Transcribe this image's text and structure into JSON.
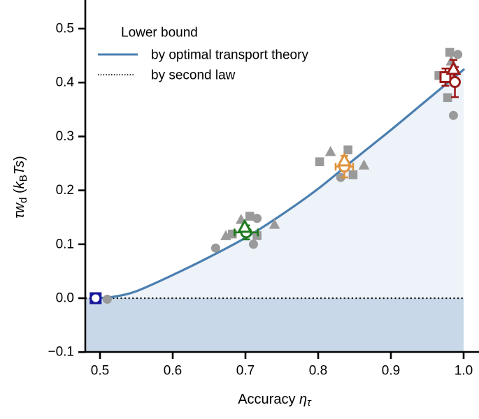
{
  "chart_data": {
    "type": "line+scatter",
    "title": "",
    "xlabel": {
      "prefix": "Accuracy ",
      "symbol": "η",
      "subscript": "τ"
    },
    "ylabel_parts": [
      {
        "t": "τ",
        "i": 1
      },
      {
        "t": "w",
        "i": 1
      },
      {
        "t": "d",
        "sub": 1
      },
      {
        "t": " (",
        "i": 0
      },
      {
        "t": "k",
        "i": 1
      },
      {
        "t": "B",
        "sub": 1
      },
      {
        "t": "T",
        "i": 1
      },
      {
        "t": "s",
        "i": 1
      },
      {
        "t": ")",
        "i": 0
      }
    ],
    "xlim": [
      0.48,
      1.0
    ],
    "ylim": [
      -0.1,
      0.553
    ],
    "x_ticks": {
      "labels": [
        "0.5",
        "0.6",
        "0.7",
        "0.8",
        "0.9",
        "1.0"
      ],
      "values": [
        0.5,
        0.6,
        0.7,
        0.8,
        0.9,
        1.0
      ]
    },
    "y_ticks": {
      "labels": [
        "0.5",
        "0.4",
        "0.3",
        "0.2",
        "0.1",
        "0.0",
        "−0.1"
      ],
      "values": [
        0.5,
        0.4,
        0.3,
        0.2,
        0.1,
        0.0,
        -0.1
      ]
    },
    "legend": {
      "title": "Lower bound",
      "items": [
        {
          "label": "by optimal transport theory",
          "style": "solid",
          "color": "#4a7fb0"
        },
        {
          "label": "by second law",
          "style": "dotted",
          "color": "#1a1a1a"
        }
      ]
    },
    "curve_optimal_transport": {
      "color": "#4a7fb0",
      "points": [
        [
          0.494,
          0.0
        ],
        [
          0.52,
          0.003
        ],
        [
          0.55,
          0.013
        ],
        [
          0.6,
          0.043
        ],
        [
          0.65,
          0.076
        ],
        [
          0.7,
          0.112
        ],
        [
          0.75,
          0.155
        ],
        [
          0.8,
          0.203
        ],
        [
          0.85,
          0.258
        ],
        [
          0.9,
          0.312
        ],
        [
          0.95,
          0.368
        ],
        [
          1.0,
          0.424
        ]
      ]
    },
    "second_law_line": {
      "y": 0.0,
      "color": "#1a1a1a",
      "style": "dotted"
    },
    "fills": {
      "between_curve_and_zero": "#eef2f9",
      "below_zero": "#c9d8e8"
    },
    "gray_points": {
      "color": "#9a9a9a",
      "points": [
        {
          "m": "circle",
          "x": 0.51,
          "y": -0.002
        },
        {
          "m": "circle",
          "x": 0.659,
          "y": 0.093
        },
        {
          "m": "triangle",
          "x": 0.673,
          "y": 0.115
        },
        {
          "m": "square",
          "x": 0.682,
          "y": 0.119
        },
        {
          "m": "triangle",
          "x": 0.694,
          "y": 0.145
        },
        {
          "m": "square",
          "x": 0.706,
          "y": 0.152
        },
        {
          "m": "circle",
          "x": 0.716,
          "y": 0.148
        },
        {
          "m": "square",
          "x": 0.716,
          "y": 0.116
        },
        {
          "m": "circle",
          "x": 0.711,
          "y": 0.1
        },
        {
          "m": "triangle",
          "x": 0.74,
          "y": 0.136
        },
        {
          "m": "triangle",
          "x": 0.817,
          "y": 0.271
        },
        {
          "m": "square",
          "x": 0.841,
          "y": 0.275
        },
        {
          "m": "square",
          "x": 0.802,
          "y": 0.253
        },
        {
          "m": "triangle",
          "x": 0.863,
          "y": 0.246
        },
        {
          "m": "square",
          "x": 0.848,
          "y": 0.229
        },
        {
          "m": "circle",
          "x": 0.831,
          "y": 0.224
        },
        {
          "m": "square",
          "x": 0.981,
          "y": 0.456
        },
        {
          "m": "circle",
          "x": 0.992,
          "y": 0.452
        },
        {
          "m": "triangle",
          "x": 0.983,
          "y": 0.439
        },
        {
          "m": "square",
          "x": 0.966,
          "y": 0.413
        },
        {
          "m": "square",
          "x": 0.978,
          "y": 0.372
        },
        {
          "m": "circle",
          "x": 0.986,
          "y": 0.339
        }
      ]
    },
    "highlight_points": [
      {
        "color": "#18189b",
        "markers": [
          {
            "m": "square",
            "x": 0.494,
            "y": 0.0
          },
          {
            "m": "circle",
            "x": 0.494,
            "y": 0.0,
            "xerr": 0.005,
            "yerr": 0.005
          }
        ]
      },
      {
        "color": "#1e7a1e",
        "markers": [
          {
            "m": "circle",
            "x": 0.701,
            "y": 0.122,
            "xerr": 0.016,
            "yerr": 0.013
          },
          {
            "m": "triangle",
            "x": 0.699,
            "y": 0.131
          }
        ]
      },
      {
        "color": "#e0923c",
        "markers": [
          {
            "m": "circle",
            "x": 0.836,
            "y": 0.244,
            "xerr": 0.012,
            "yerr": 0.02
          },
          {
            "m": "triangle",
            "x": 0.836,
            "y": 0.254
          }
        ]
      },
      {
        "color": "#9b1a1a",
        "markers": [
          {
            "m": "square",
            "x": 0.975,
            "y": 0.41,
            "xerr": 0.006,
            "yerr": 0.016
          },
          {
            "m": "triangle",
            "x": 0.986,
            "y": 0.424,
            "yerr": 0.018
          },
          {
            "m": "circle",
            "x": 0.988,
            "y": 0.401,
            "yerr": 0.028
          }
        ]
      }
    ]
  }
}
